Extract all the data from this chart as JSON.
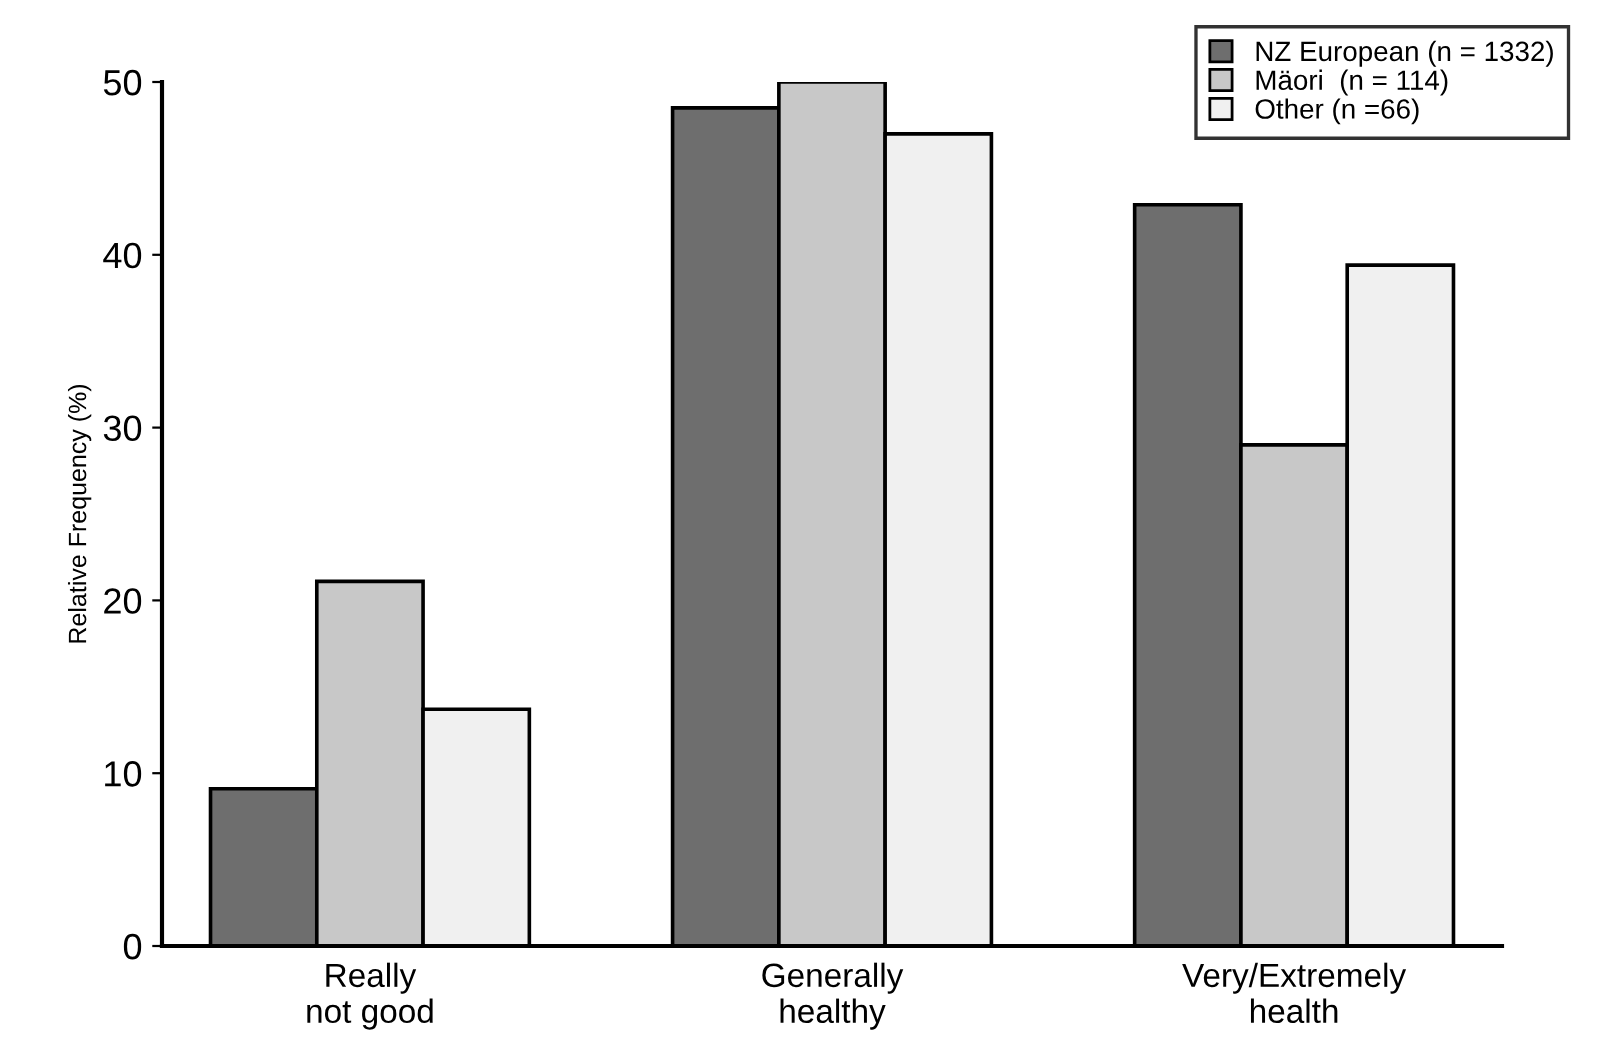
{
  "chart_data": {
    "type": "bar",
    "ylabel": "Relative Frequency (%)",
    "categories": [
      "Really\nnot good",
      "Generally\nhealthy",
      "Very/Extremely\nhealth"
    ],
    "series": [
      {
        "name": "NZ European (n = 1332)",
        "color": "#6e6e6e",
        "values": [
          9.1,
          48.5,
          42.9
        ]
      },
      {
        "name": "Mäori  (n = 114)",
        "color": "#c8c8c8",
        "values": [
          21.1,
          50.0,
          29.0
        ]
      },
      {
        "name": "Other (n =66)",
        "color": "#f0f0f0",
        "values": [
          13.7,
          47.0,
          39.4
        ]
      }
    ],
    "ylim": [
      0,
      50
    ],
    "yticks": [
      0,
      10,
      20,
      30,
      40,
      50
    ],
    "grid": false,
    "legend": "top right"
  }
}
